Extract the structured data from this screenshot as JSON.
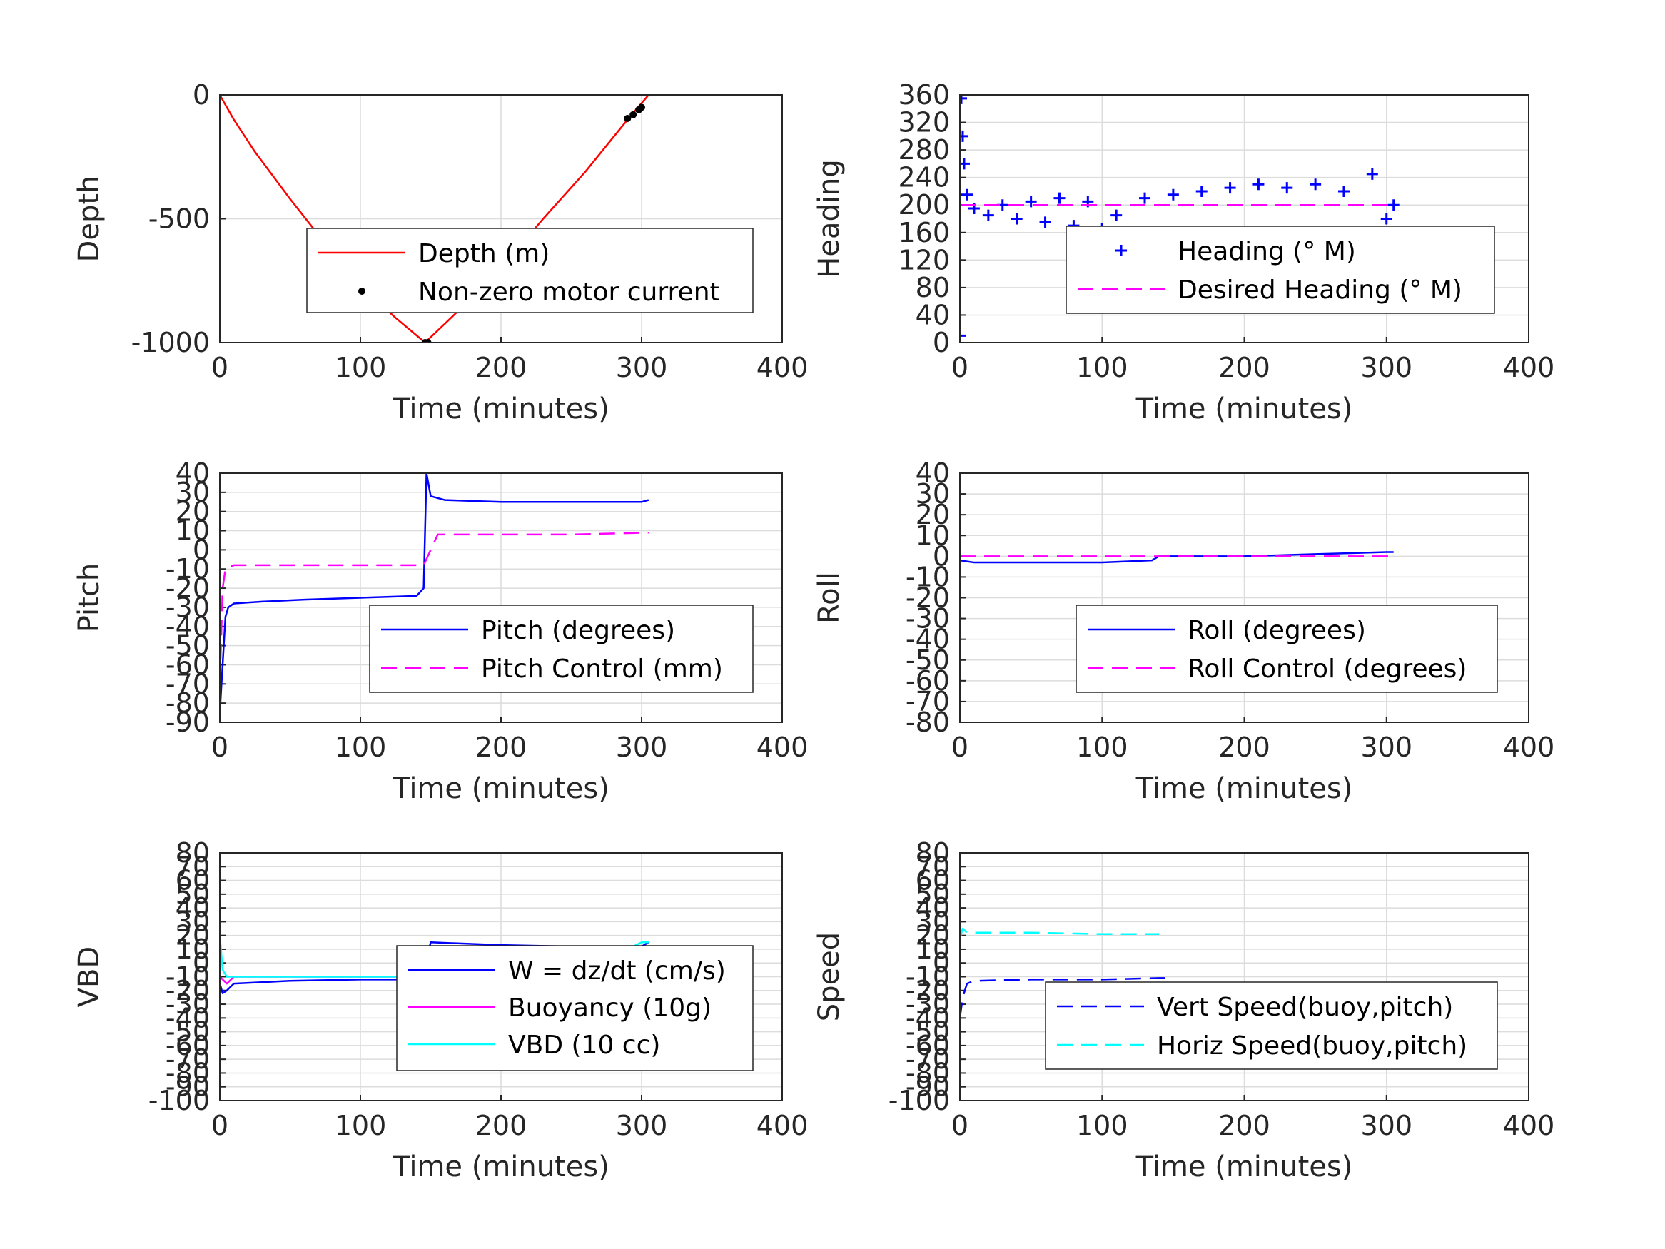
{
  "colors": {
    "red": "#ff0000",
    "blue": "#0000ff",
    "magenta": "#ff00ff",
    "cyan": "#00ffff",
    "black": "#000000"
  },
  "chart_data": [
    {
      "type": "line",
      "xlabel": "Time (minutes)",
      "ylabel": "Depth",
      "xlim": [
        0,
        400
      ],
      "ylim": [
        -1000,
        0
      ],
      "xticks": [
        "0",
        "100",
        "200",
        "300",
        "400"
      ],
      "yticks": [
        "0",
        "-500",
        "-1000"
      ],
      "grid": true,
      "legend_position": "inside-right",
      "series": [
        {
          "name": "Depth (m)",
          "style": "line",
          "color": "#ff0000",
          "x": [
            0,
            10,
            25,
            50,
            75,
            100,
            125,
            146,
            170,
            200,
            230,
            260,
            290,
            305
          ],
          "y": [
            0,
            -100,
            -230,
            -420,
            -600,
            -770,
            -900,
            -1000,
            -870,
            -700,
            -500,
            -310,
            -100,
            0
          ]
        },
        {
          "name": "Non-zero motor current",
          "style": "points",
          "color": "#000000",
          "x": [
            146,
            148,
            290,
            294,
            298,
            300
          ],
          "y": [
            -1000,
            -1000,
            -95,
            -80,
            -60,
            -50
          ]
        }
      ]
    },
    {
      "type": "scatter",
      "xlabel": "Time (minutes)",
      "ylabel": "Heading",
      "xlim": [
        0,
        400
      ],
      "ylim": [
        0,
        360
      ],
      "xticks": [
        "0",
        "100",
        "200",
        "300",
        "400"
      ],
      "yticks": [
        "360",
        "320",
        "280",
        "240",
        "200",
        "160",
        "120",
        "80",
        "40",
        "0"
      ],
      "grid": true,
      "legend_position": "lower-right",
      "series": [
        {
          "name": "Heading (° M)",
          "style": "plus",
          "color": "#0000ff",
          "x": [
            0,
            1,
            2,
            3,
            5,
            10,
            20,
            30,
            40,
            50,
            60,
            70,
            80,
            90,
            100,
            110,
            120,
            130,
            140,
            150,
            160,
            170,
            180,
            190,
            200,
            210,
            220,
            230,
            240,
            250,
            260,
            270,
            280,
            290,
            300,
            305
          ],
          "y": [
            10,
            355,
            300,
            260,
            215,
            195,
            185,
            200,
            180,
            205,
            175,
            210,
            170,
            205,
            165,
            185,
            160,
            210,
            150,
            215,
            140,
            220,
            125,
            225,
            130,
            230,
            135,
            225,
            140,
            230,
            150,
            220,
            160,
            245,
            180,
            200
          ]
        },
        {
          "name": "Desired Heading (° M)",
          "style": "dashed",
          "color": "#ff00ff",
          "x": [
            0,
            305
          ],
          "y": [
            200,
            200
          ]
        }
      ]
    },
    {
      "type": "line",
      "xlabel": "Time (minutes)",
      "ylabel": "Pitch",
      "xlim": [
        0,
        400
      ],
      "ylim": [
        -90,
        40
      ],
      "xticks": [
        "0",
        "100",
        "200",
        "300",
        "400"
      ],
      "yticks": [
        "40",
        "30",
        "20",
        "10",
        "0",
        "-10",
        "-20",
        "-30",
        "-40",
        "-50",
        "-60",
        "-70",
        "-80",
        "-90"
      ],
      "grid": true,
      "legend_position": "lower-right",
      "series": [
        {
          "name": "Pitch (degrees)",
          "style": "line",
          "color": "#0000ff",
          "x": [
            0,
            2,
            4,
            6,
            10,
            30,
            60,
            100,
            140,
            145,
            147,
            150,
            160,
            200,
            250,
            300,
            305
          ],
          "y": [
            -85,
            -60,
            -35,
            -30,
            -28,
            -27,
            -26,
            -25,
            -24,
            -20,
            40,
            28,
            26,
            25,
            25,
            25,
            26
          ]
        },
        {
          "name": "Pitch Control (mm)",
          "style": "dashed",
          "color": "#ff00ff",
          "x": [
            0,
            2,
            4,
            10,
            100,
            145,
            155,
            200,
            250,
            305
          ],
          "y": [
            -70,
            -20,
            -10,
            -8,
            -8,
            -8,
            8,
            8,
            8,
            9
          ]
        }
      ]
    },
    {
      "type": "line",
      "xlabel": "Time (minutes)",
      "ylabel": "Roll",
      "xlim": [
        0,
        400
      ],
      "ylim": [
        -80,
        40
      ],
      "xticks": [
        "0",
        "100",
        "200",
        "300",
        "400"
      ],
      "yticks": [
        "40",
        "30",
        "20",
        "10",
        "0",
        "-10",
        "-20",
        "-30",
        "-40",
        "-50",
        "-60",
        "-70",
        "-80"
      ],
      "grid": true,
      "legend_position": "lower-right",
      "series": [
        {
          "name": "Roll (degrees)",
          "style": "line",
          "color": "#0000ff",
          "x": [
            0,
            10,
            50,
            100,
            135,
            140,
            200,
            250,
            300,
            305
          ],
          "y": [
            -2,
            -3,
            -3,
            -3,
            -2,
            0,
            0,
            1,
            2,
            2
          ]
        },
        {
          "name": "Roll Control (degrees)",
          "style": "dashed",
          "color": "#ff00ff",
          "x": [
            0,
            305
          ],
          "y": [
            0,
            0
          ]
        }
      ]
    },
    {
      "type": "line",
      "xlabel": "Time (minutes)",
      "ylabel": "VBD",
      "xlim": [
        0,
        400
      ],
      "ylim": [
        -100,
        80
      ],
      "xticks": [
        "0",
        "100",
        "200",
        "300",
        "400"
      ],
      "yticks": [
        "80",
        "70",
        "60",
        "50",
        "40",
        "30",
        "20",
        "10",
        "0",
        "-10",
        "-20",
        "-30",
        "-40",
        "-50",
        "-60",
        "-70",
        "-80",
        "-90",
        "-100"
      ],
      "grid": true,
      "legend_position": "inside-right",
      "series": [
        {
          "name": "W = dz/dt (cm/s)",
          "style": "line",
          "color": "#0000ff",
          "x": [
            0,
            2,
            5,
            10,
            50,
            100,
            140,
            145,
            150,
            200,
            250,
            300,
            305
          ],
          "y": [
            -15,
            -22,
            -20,
            -15,
            -13,
            -12,
            -12,
            -5,
            15,
            13,
            12,
            12,
            15
          ]
        },
        {
          "name": "Buoyancy (10g)",
          "style": "line",
          "color": "#ff00ff",
          "x": [
            0,
            5,
            10,
            145,
            150,
            305
          ],
          "y": [
            -10,
            -15,
            -10,
            -10,
            10,
            10
          ]
        },
        {
          "name": "VBD (10 cc)",
          "style": "line",
          "color": "#00ffff",
          "x": [
            0,
            2,
            5,
            10,
            145,
            150,
            290,
            300,
            305
          ],
          "y": [
            20,
            -5,
            -10,
            -10,
            -10,
            10,
            10,
            15,
            15
          ]
        }
      ]
    },
    {
      "type": "line",
      "xlabel": "Time (minutes)",
      "ylabel": "Speed",
      "xlim": [
        0,
        400
      ],
      "ylim": [
        -100,
        80
      ],
      "xticks": [
        "0",
        "100",
        "200",
        "300",
        "400"
      ],
      "yticks": [
        "80",
        "70",
        "60",
        "50",
        "40",
        "30",
        "20",
        "10",
        "0",
        "-10",
        "-20",
        "-30",
        "-40",
        "-50",
        "-60",
        "-70",
        "-80",
        "-90",
        "-100"
      ],
      "grid": true,
      "legend_position": "lower-right",
      "series": [
        {
          "name": "Vert Speed(buoy,pitch)",
          "style": "dashed",
          "color": "#0000ff",
          "x": [
            0,
            2,
            5,
            10,
            50,
            100,
            140,
            145
          ],
          "y": [
            -40,
            -25,
            -15,
            -13,
            -12,
            -12,
            -11,
            -11
          ]
        },
        {
          "name": "Horiz Speed(buoy,pitch)",
          "style": "dashed",
          "color": "#00ffff",
          "x": [
            0,
            2,
            5,
            10,
            50,
            100,
            140
          ],
          "y": [
            18,
            25,
            22,
            22,
            22,
            21,
            21
          ]
        }
      ]
    }
  ]
}
